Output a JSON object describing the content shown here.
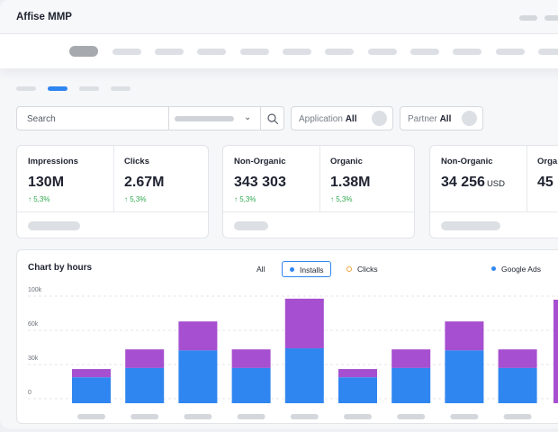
{
  "app": {
    "title": "Affise MMP"
  },
  "search": {
    "label": "Search"
  },
  "filters": [
    {
      "label": "Application",
      "value": "All"
    },
    {
      "label": "Partner",
      "value": "All"
    }
  ],
  "cards": [
    {
      "metrics": [
        {
          "name": "Impressions",
          "value": "130M",
          "unit": "",
          "change": "↑ 5,3%"
        },
        {
          "name": "Clicks",
          "value": "2.67M",
          "unit": "",
          "change": "↑ 5,3%"
        }
      ]
    },
    {
      "metrics": [
        {
          "name": "Non-Organic",
          "value": "343 303",
          "unit": "",
          "change": "↑ 5,3%"
        },
        {
          "name": "Organic",
          "value": "1.38M",
          "unit": "",
          "change": "↑ 5,3%"
        }
      ]
    },
    {
      "metrics": [
        {
          "name": "Non-Organic",
          "value": "34 256",
          "unit": "USD",
          "change": ""
        },
        {
          "name": "Orga",
          "value": "45",
          "unit": "",
          "change": ""
        }
      ]
    }
  ],
  "chart": {
    "title": "Chart by hours",
    "legend": {
      "all": "All",
      "installs": "Installs",
      "clicks": "Clicks",
      "source": "Google Ads"
    }
  },
  "colors": {
    "installs": "#2f86f0",
    "clicks": "#a64fd0",
    "accent": "#2f86f0",
    "positive": "#2fa84f"
  },
  "chart_data": {
    "type": "bar",
    "stacked": true,
    "y_tick_labels": [
      "100k",
      "60k",
      "30k",
      "0"
    ],
    "ylim": [
      0,
      100000
    ],
    "grid": true,
    "legend_placement": "top",
    "categories": [
      "",
      "",
      "",
      "",
      "",
      "",
      "",
      "",
      ""
    ],
    "series": [
      {
        "name": "Installs",
        "values": [
          25000,
          34000,
          51000,
          34000,
          53000,
          25000,
          34000,
          51000,
          34000
        ]
      },
      {
        "name": "Clicks",
        "values": [
          8000,
          18000,
          28000,
          18000,
          48000,
          8000,
          18000,
          28000,
          18000
        ]
      }
    ]
  }
}
